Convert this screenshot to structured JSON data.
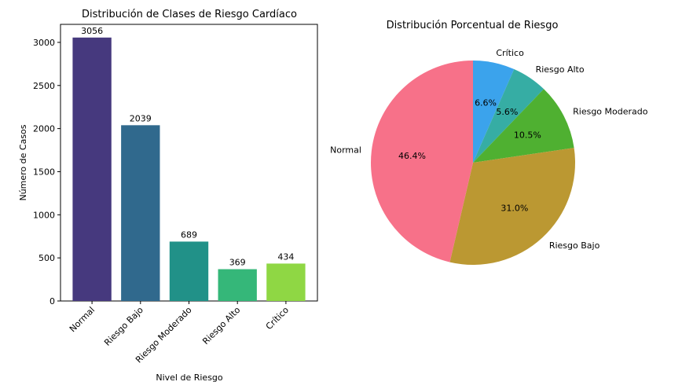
{
  "chart_data": [
    {
      "type": "bar",
      "title": "Distribución de Clases de Riesgo Cardíaco",
      "xlabel": "Nivel de Riesgo",
      "ylabel": "Número de Casos",
      "categories": [
        "Normal",
        "Riesgo Bajo",
        "Riesgo Moderado",
        "Riesgo Alto",
        "Crítico"
      ],
      "values": [
        3056,
        2039,
        689,
        369,
        434
      ],
      "value_labels": [
        "3056",
        "2039",
        "689",
        "369",
        "434"
      ],
      "colors": [
        "#46397e",
        "#30698d",
        "#219188",
        "#35b779",
        "#8fd744"
      ],
      "ylim": [
        0,
        3209
      ],
      "yticks": [
        0,
        500,
        1000,
        1500,
        2000,
        2500,
        3000
      ],
      "grid": false
    },
    {
      "type": "pie",
      "title": "Distribución Porcentual de Riesgo",
      "labels": [
        "Crítico",
        "Riesgo Alto",
        "Riesgo Moderado",
        "Riesgo Bajo",
        "Normal"
      ],
      "values": [
        6.6,
        5.6,
        10.5,
        31.0,
        46.4
      ],
      "pct_labels": [
        "6.6%",
        "5.6%",
        "10.5%",
        "31.0%",
        "46.4%"
      ],
      "colors": [
        "#3ba3ec",
        "#36ada4",
        "#4fb031",
        "#bb9832",
        "#f77189"
      ],
      "start_angle": 90,
      "direction": "clockwise"
    }
  ]
}
